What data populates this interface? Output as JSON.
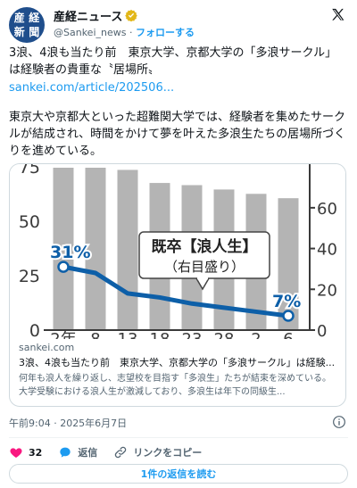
{
  "account": {
    "avatar_chars": [
      "産",
      "経",
      "新",
      "聞"
    ],
    "name": "産経ニュース",
    "handle": "@Sankei_news",
    "separator": "·",
    "follow_label": "フォローする"
  },
  "post": {
    "title": "3浪、4浪も当たり前　東京大学、京都大学の「多浪サークル」は経験者の貴重な〝居場所〟",
    "link": "sankei.com/article/202506...",
    "body": "東京大や京都大といった超難関大学では、経験者を集めたサークルが結成され、時間をかけて夢を叶えた多浪生たちの居場所づくりを進めている。"
  },
  "chart_data": {
    "type": "bar",
    "categories": [
      "2年",
      "8",
      "13",
      "18",
      "23",
      "28",
      "2",
      "6"
    ],
    "bars": {
      "values": [
        75,
        75,
        74,
        68,
        67,
        65,
        63,
        61
      ],
      "ylim_left": [
        0,
        75
      ],
      "yticks_left": [
        "0",
        "25",
        "50",
        "75"
      ],
      "color": "#b4b4b4"
    },
    "series": [
      {
        "name": "既卒【浪人生】",
        "sub_label": "（右目盛り）",
        "values": [
          31,
          28,
          18,
          16,
          13,
          11,
          9,
          7
        ],
        "start_label": "31%",
        "end_label": "7%",
        "color": "#0d5fa8"
      }
    ],
    "ylim_right": [
      0,
      70
    ],
    "yticks_right": [
      "0",
      "20",
      "40",
      "60"
    ]
  },
  "card": {
    "domain": "sankei.com",
    "title": "3浪、4浪も当たり前　東京大学、京都大学の「多浪サークル」は経験...",
    "description": "何年も浪人を繰り返し、志望校を目指す「多浪生」たちが結束を深めている。大学受験における浪人生が激減しており、多浪生は年下の同級生..."
  },
  "timestamp": "午前9:04 · 2025年6月7日",
  "actions": {
    "like_count": "32",
    "reply_label": "返信",
    "copy_link_label": "リンクをコピー"
  },
  "read_replies_label": "1件の返信を読む",
  "colors": {
    "link": "#1d9bf0",
    "like": "#f91880",
    "verified": "#e2b719"
  }
}
